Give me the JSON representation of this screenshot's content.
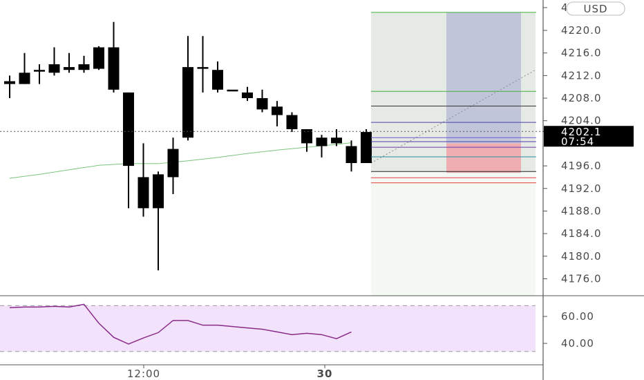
{
  "chart_data": {
    "type": "candlestick",
    "currency": "USD",
    "price_axis": {
      "range": [
        4172,
        4224
      ],
      "ticks": [
        4220,
        4216,
        4212,
        4208,
        4204,
        4196,
        4192,
        4188,
        4184,
        4180,
        4176
      ],
      "tick_labels": [
        "4220.0",
        "4216.0",
        "4212.0",
        "4208.0",
        "4204.0",
        "4196.0",
        "4192.0",
        "4188.0",
        "4184.0",
        "4180.0",
        "4176.0"
      ]
    },
    "current_price": {
      "value": 4202.1,
      "label": "4202.1",
      "countdown": "07:54"
    },
    "time_axis": {
      "labels": [
        "12:00",
        "30"
      ]
    },
    "candles": [
      {
        "o": 4211,
        "h": 4212,
        "l": 4208,
        "c": 4210.5
      },
      {
        "o": 4210.5,
        "h": 4216,
        "l": 4210.5,
        "c": 4212.5
      },
      {
        "o": 4213,
        "h": 4214,
        "l": 4210.5,
        "c": 4212.8
      },
      {
        "o": 4212.5,
        "h": 4217,
        "l": 4212,
        "c": 4214
      },
      {
        "o": 4213,
        "h": 4216,
        "l": 4212.5,
        "c": 4213.5
      },
      {
        "o": 4213,
        "h": 4215.5,
        "l": 4212.5,
        "c": 4214
      },
      {
        "o": 4217,
        "h": 4217.2,
        "l": 4213,
        "c": 4213.2
      },
      {
        "o": 4217,
        "h": 4221.5,
        "l": 4209,
        "c": 4209.5
      },
      {
        "o": 4209,
        "h": 4209,
        "l": 4188.5,
        "c": 4196
      },
      {
        "o": 4194,
        "h": 4200,
        "l": 4187,
        "c": 4188.5
      },
      {
        "o": 4194.5,
        "h": 4195,
        "l": 4177.5,
        "c": 4188.5
      },
      {
        "o": 4194,
        "h": 4201,
        "l": 4191,
        "c": 4199
      },
      {
        "o": 4201,
        "h": 4219,
        "l": 4200.5,
        "c": 4213.5
      },
      {
        "o": 4213.5,
        "h": 4219,
        "l": 4209,
        "c": 4213.5
      },
      {
        "o": 4213,
        "h": 4214.5,
        "l": 4209,
        "c": 4209.5
      },
      {
        "o": 4209.5,
        "h": 4209.5,
        "l": 4209.5,
        "c": 4209.5
      },
      {
        "o": 4209,
        "h": 4210,
        "l": 4207.5,
        "c": 4208
      },
      {
        "o": 4208,
        "h": 4209.5,
        "l": 4205.5,
        "c": 4206
      },
      {
        "o": 4206.5,
        "h": 4207.5,
        "l": 4203,
        "c": 4205
      },
      {
        "o": 4205,
        "h": 4205.5,
        "l": 4202,
        "c": 4202.5
      },
      {
        "o": 4202.5,
        "h": 4202.5,
        "l": 4198.5,
        "c": 4200
      },
      {
        "o": 4201,
        "h": 4201.5,
        "l": 4197.5,
        "c": 4199.5
      },
      {
        "o": 4201,
        "h": 4202.5,
        "l": 4199.5,
        "c": 4200
      },
      {
        "o": 4199.5,
        "h": 4200.5,
        "l": 4195,
        "c": 4196.5
      },
      {
        "o": 4196.5,
        "h": 4202.5,
        "l": 4196.5,
        "c": 4202
      }
    ],
    "moving_average": {
      "color": "#7cc47c",
      "points": [
        {
          "i": 0,
          "v": 4193.8
        },
        {
          "i": 2,
          "v": 4194.5
        },
        {
          "i": 4,
          "v": 4195.3
        },
        {
          "i": 6,
          "v": 4196.1
        },
        {
          "i": 8,
          "v": 4196.4
        },
        {
          "i": 10,
          "v": 4196.4
        },
        {
          "i": 12,
          "v": 4196.9
        },
        {
          "i": 14,
          "v": 4197.5
        },
        {
          "i": 16,
          "v": 4198.2
        },
        {
          "i": 18,
          "v": 4198.8
        },
        {
          "i": 20,
          "v": 4199.3
        },
        {
          "i": 22,
          "v": 4199.8
        },
        {
          "i": 23,
          "v": 4200.1
        }
      ]
    },
    "position_tool": {
      "levels": [
        {
          "v": 4223.2,
          "color": "#3fae3f"
        },
        {
          "v": 4209.2,
          "color": "#3fae3f"
        },
        {
          "v": 4206.6,
          "color": "#333333"
        },
        {
          "v": 4203.7,
          "color": "#4b3fae"
        },
        {
          "v": 4201.0,
          "color": "#6a5acd"
        },
        {
          "v": 4200.3,
          "color": "#4b3fae"
        },
        {
          "v": 4199.3,
          "color": "#6a3fae"
        },
        {
          "v": 4197.6,
          "color": "#2a8fa0"
        },
        {
          "v": 4195.0,
          "color": "#222222"
        },
        {
          "v": 4193.9,
          "color": "#e04040"
        },
        {
          "v": 4193.0,
          "color": "#e04040"
        }
      ],
      "profit_zone_color": "#b9bed8",
      "loss_zone_color": "#f0a3a8",
      "zone_top": 4223.2,
      "zone_entry": 4200.0,
      "zone_bottom": 4195.0
    },
    "rsi": {
      "range": [
        30,
        70
      ],
      "ticks": [
        60,
        40
      ],
      "tick_labels": [
        "60.00",
        "40.00"
      ],
      "band": [
        34,
        68
      ],
      "color": "#8a2b8a",
      "values": [
        66.5,
        67,
        67,
        67.5,
        67,
        69,
        55,
        44.5,
        39.5,
        44,
        48,
        57,
        57,
        53.5,
        53.5,
        52.5,
        51.5,
        50.5,
        48.5,
        46.5,
        47.5,
        46.5,
        43.5,
        48.5
      ]
    }
  }
}
